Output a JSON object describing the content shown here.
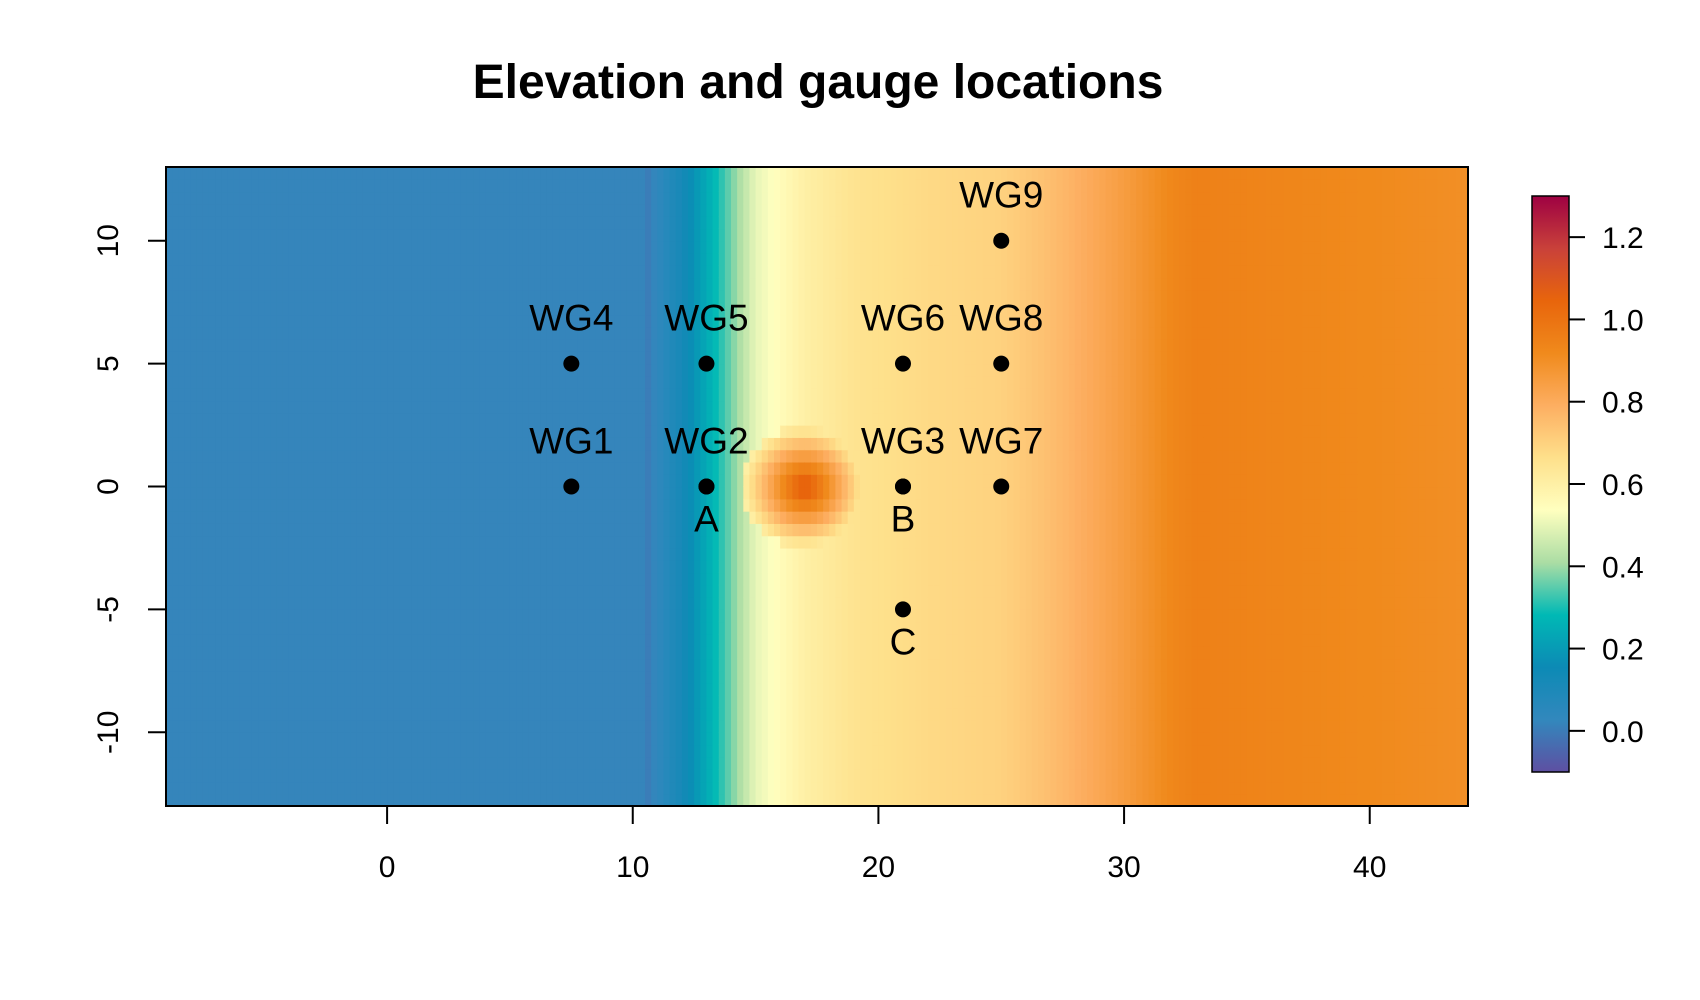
{
  "chart_data": {
    "type": "heatmap",
    "title": "Elevation and gauge locations",
    "xlabel": "",
    "ylabel": "",
    "xlim": [
      -9,
      44
    ],
    "ylim": [
      -13,
      13
    ],
    "x_ticks": [
      0,
      10,
      20,
      30,
      40
    ],
    "y_ticks": [
      -10,
      -5,
      0,
      5,
      10
    ],
    "colorbar": {
      "range": [
        -0.1,
        1.3
      ],
      "ticks": [
        "0.0",
        "0.2",
        "0.4",
        "0.6",
        "0.8",
        "1.0",
        "1.2"
      ],
      "tick_values": [
        0.0,
        0.2,
        0.4,
        0.6,
        0.8,
        1.0,
        1.2
      ],
      "palette": [
        "#5e4fa2",
        "#3288bd",
        "#0c8ab5",
        "#00b9b5",
        "#abdda4",
        "#ffffbf",
        "#fee08b",
        "#fdae61",
        "#f08a1c",
        "#e8650c",
        "#c9413a",
        "#9e0142"
      ]
    },
    "elevation_profile": {
      "x": [
        -9,
        10.4,
        10.6,
        12,
        13.5,
        15,
        17,
        19,
        22,
        25,
        27,
        30,
        32,
        33,
        44
      ],
      "z": [
        0.02,
        0.02,
        0.0,
        0.12,
        0.3,
        0.5,
        0.6,
        0.65,
        0.68,
        0.7,
        0.75,
        0.85,
        0.93,
        0.95,
        0.9
      ]
    },
    "bump": {
      "x": 17,
      "y": 0,
      "peak": 1.1
    },
    "gauges": [
      {
        "name": "WG1",
        "x": 7.5,
        "y": 0
      },
      {
        "name": "WG2",
        "x": 13,
        "y": 0
      },
      {
        "name": "WG3",
        "x": 21,
        "y": 0
      },
      {
        "name": "WG4",
        "x": 7.5,
        "y": 5
      },
      {
        "name": "WG5",
        "x": 13,
        "y": 5
      },
      {
        "name": "WG6",
        "x": 21,
        "y": 5
      },
      {
        "name": "WG7",
        "x": 25,
        "y": 0
      },
      {
        "name": "WG8",
        "x": 25,
        "y": 5
      },
      {
        "name": "WG9",
        "x": 25,
        "y": 10
      }
    ],
    "points": [
      {
        "name": "A",
        "x": 13,
        "y": 0
      },
      {
        "name": "B",
        "x": 21,
        "y": 0
      },
      {
        "name": "C",
        "x": 21,
        "y": -5
      }
    ]
  }
}
